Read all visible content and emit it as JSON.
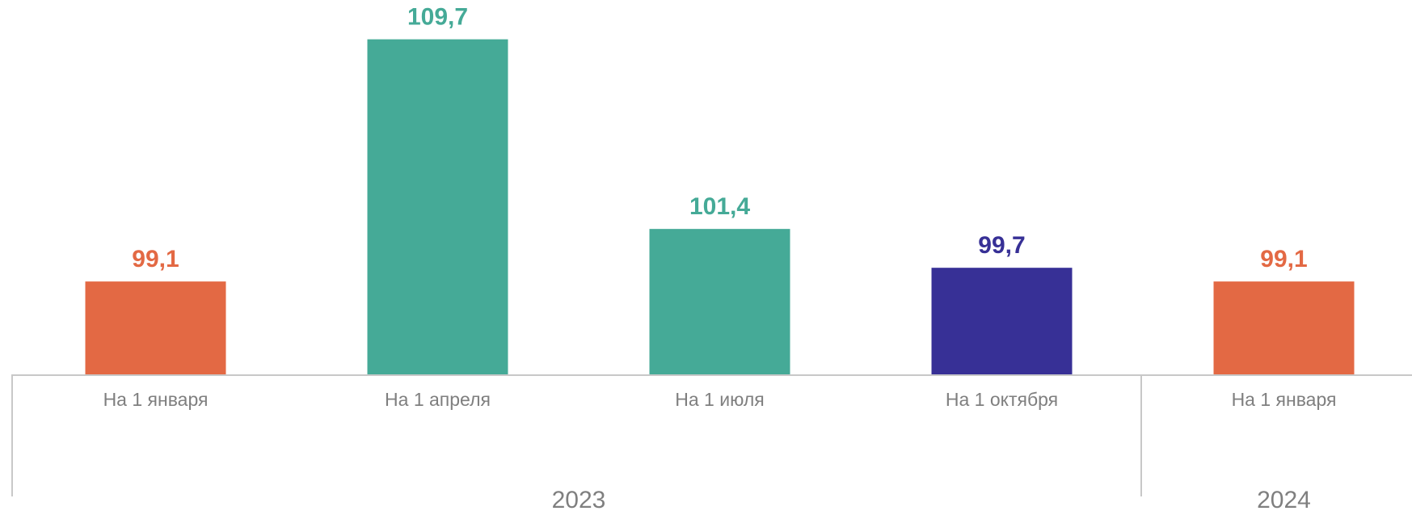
{
  "chart_data": {
    "type": "bar",
    "title": "",
    "xlabel": "",
    "ylabel": "",
    "categories": [
      "На 1 января",
      "На 1 апреля",
      "На 1 июля",
      "На 1 октября",
      "На 1 января"
    ],
    "groups": [
      {
        "label": "2023",
        "span": 4
      },
      {
        "label": "2024",
        "span": 1
      }
    ],
    "values": [
      99.1,
      109.7,
      101.4,
      99.7,
      99.1
    ],
    "value_labels": [
      "99,1",
      "109,7",
      "101,4",
      "99,7",
      "99,1"
    ],
    "colors": [
      "#E36944",
      "#45AA97",
      "#45AA97",
      "#373096",
      "#E36944"
    ],
    "ylim": [
      95,
      110.5
    ],
    "grid": false,
    "legend": "none"
  }
}
